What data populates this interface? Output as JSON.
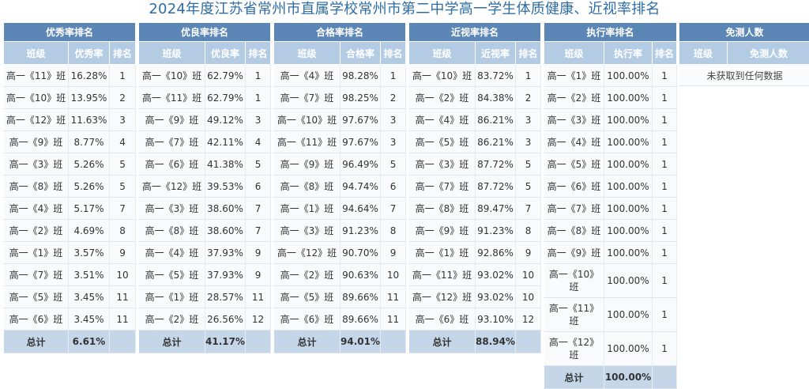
{
  "title": "2024年度江苏省常州市直属学校常州市第二中学高一学生体质健康、近视率排名",
  "panels": [
    {
      "title": "优秀率排名",
      "columns": [
        "班级",
        "优秀率",
        "排名"
      ],
      "rows": [
        [
          "高一《11》班",
          "16.28%",
          "1"
        ],
        [
          "高一《10》班",
          "13.95%",
          "2"
        ],
        [
          "高一《12》班",
          "11.63%",
          "3"
        ],
        [
          "高一《9》班",
          "8.77%",
          "4"
        ],
        [
          "高一《3》班",
          "5.26%",
          "5"
        ],
        [
          "高一《8》班",
          "5.26%",
          "5"
        ],
        [
          "高一《4》班",
          "5.17%",
          "7"
        ],
        [
          "高一《2》班",
          "4.69%",
          "8"
        ],
        [
          "高一《1》班",
          "3.57%",
          "9"
        ],
        [
          "高一《7》班",
          "3.51%",
          "10"
        ],
        [
          "高一《5》班",
          "3.45%",
          "11"
        ],
        [
          "高一《6》班",
          "3.45%",
          "11"
        ]
      ],
      "total_label": "总计",
      "total_value": "6.61%"
    },
    {
      "title": "优良率排名",
      "columns": [
        "班级",
        "优良率",
        "排名"
      ],
      "rows": [
        [
          "高一《10》班",
          "62.79%",
          "1"
        ],
        [
          "高一《11》班",
          "62.79%",
          "1"
        ],
        [
          "高一《9》班",
          "49.12%",
          "3"
        ],
        [
          "高一《7》班",
          "42.11%",
          "4"
        ],
        [
          "高一《6》班",
          "41.38%",
          "5"
        ],
        [
          "高一《12》班",
          "39.53%",
          "6"
        ],
        [
          "高一《3》班",
          "38.60%",
          "7"
        ],
        [
          "高一《8》班",
          "38.60%",
          "7"
        ],
        [
          "高一《4》班",
          "37.93%",
          "9"
        ],
        [
          "高一《5》班",
          "37.93%",
          "9"
        ],
        [
          "高一《1》班",
          "28.57%",
          "11"
        ],
        [
          "高一《2》班",
          "26.56%",
          "12"
        ]
      ],
      "total_label": "总计",
      "total_value": "41.17%"
    },
    {
      "title": "合格率排名",
      "columns": [
        "班级",
        "合格率",
        "排名"
      ],
      "rows": [
        [
          "高一《4》班",
          "98.28%",
          "1"
        ],
        [
          "高一《7》班",
          "98.25%",
          "2"
        ],
        [
          "高一《10》班",
          "97.67%",
          "3"
        ],
        [
          "高一《11》班",
          "97.67%",
          "3"
        ],
        [
          "高一《9》班",
          "96.49%",
          "5"
        ],
        [
          "高一《8》班",
          "94.74%",
          "6"
        ],
        [
          "高一《1》班",
          "94.64%",
          "7"
        ],
        [
          "高一《3》班",
          "91.23%",
          "8"
        ],
        [
          "高一《12》班",
          "90.70%",
          "9"
        ],
        [
          "高一《2》班",
          "90.63%",
          "10"
        ],
        [
          "高一《5》班",
          "89.66%",
          "11"
        ],
        [
          "高一《6》班",
          "89.66%",
          "11"
        ]
      ],
      "total_label": "总计",
      "total_value": "94.01%"
    },
    {
      "title": "近视率排名",
      "columns": [
        "班级",
        "近视率",
        "排名"
      ],
      "rows": [
        [
          "高一《10》班",
          "83.72%",
          "1"
        ],
        [
          "高一《2》班",
          "84.38%",
          "2"
        ],
        [
          "高一《4》班",
          "86.21%",
          "3"
        ],
        [
          "高一《5》班",
          "86.21%",
          "3"
        ],
        [
          "高一《3》班",
          "87.72%",
          "5"
        ],
        [
          "高一《7》班",
          "87.72%",
          "5"
        ],
        [
          "高一《8》班",
          "89.47%",
          "7"
        ],
        [
          "高一《9》班",
          "91.23%",
          "8"
        ],
        [
          "高一《1》班",
          "92.86%",
          "9"
        ],
        [
          "高一《11》班",
          "93.02%",
          "10"
        ],
        [
          "高一《12》班",
          "93.02%",
          "10"
        ],
        [
          "高一《6》班",
          "93.10%",
          "12"
        ]
      ],
      "total_label": "总计",
      "total_value": "88.94%"
    },
    {
      "title": "执行率排名",
      "columns": [
        "班级",
        "执行率",
        "排名"
      ],
      "rows": [
        [
          "高一《1》班",
          "100.00%",
          "1"
        ],
        [
          "高一《2》班",
          "100.00%",
          "1"
        ],
        [
          "高一《3》班",
          "100.00%",
          "1"
        ],
        [
          "高一《4》班",
          "100.00%",
          "1"
        ],
        [
          "高一《5》班",
          "100.00%",
          "1"
        ],
        [
          "高一《6》班",
          "100.00%",
          "1"
        ],
        [
          "高一《7》班",
          "100.00%",
          "1"
        ],
        [
          "高一《8》班",
          "100.00%",
          "1"
        ],
        [
          "高一《9》班",
          "100.00%",
          "1"
        ],
        [
          "高一《10》班",
          "100.00%",
          "1"
        ],
        [
          "高一《11》班",
          "100.00%",
          "1"
        ],
        [
          "高一《12》班",
          "100.00%",
          "1"
        ]
      ],
      "total_label": "总计",
      "total_value": "100.00%"
    },
    {
      "title": "免测人数",
      "columns": [
        "班级",
        "免测人数"
      ],
      "rows": [],
      "empty_text": "未获取到任何数据"
    }
  ]
}
